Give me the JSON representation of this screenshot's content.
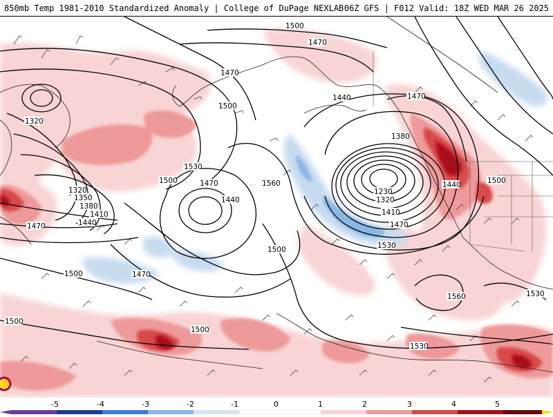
{
  "header": {
    "left_title": "850mb Temp 1981-2010 Standardized Anomaly | College of DuPage NEXLAB",
    "right_title": "06Z GFS | F012 Valid: 18Z WED MAR 26 2025"
  },
  "contour_labels": [
    {
      "id": "c1500a",
      "text": "1500"
    },
    {
      "id": "c1470a",
      "text": "1470"
    },
    {
      "id": "c1470b",
      "text": "1470"
    },
    {
      "id": "c1440a",
      "text": "1440"
    },
    {
      "id": "c1470c",
      "text": "1470"
    },
    {
      "id": "c1320a",
      "text": "1320"
    },
    {
      "id": "c1500b",
      "text": "1500"
    },
    {
      "id": "c1380a",
      "text": "1380"
    },
    {
      "id": "c1530a",
      "text": "1530"
    },
    {
      "id": "c1560a",
      "text": "1560"
    },
    {
      "id": "c1500c",
      "text": "1500"
    },
    {
      "id": "c1470d",
      "text": "1470"
    },
    {
      "id": "c1440b",
      "text": "1440"
    },
    {
      "id": "c1230",
      "text": "1230"
    },
    {
      "id": "c1320b",
      "text": "1320"
    },
    {
      "id": "c1410a",
      "text": "1410"
    },
    {
      "id": "c1470e",
      "text": "1470"
    },
    {
      "id": "c1440c",
      "text": "1440"
    },
    {
      "id": "c1500d",
      "text": "1500"
    },
    {
      "id": "c1320c",
      "text": "1320"
    },
    {
      "id": "c1350",
      "text": "1350"
    },
    {
      "id": "c1380b",
      "text": "1380"
    },
    {
      "id": "c1410b",
      "text": "1410"
    },
    {
      "id": "c1440d",
      "text": "1440"
    },
    {
      "id": "c1470f",
      "text": "1470"
    },
    {
      "id": "c1530b",
      "text": "1530"
    },
    {
      "id": "c1500e",
      "text": "1500"
    },
    {
      "id": "c1500f",
      "text": "1500"
    },
    {
      "id": "c1470g",
      "text": "1470"
    },
    {
      "id": "c1560b",
      "text": "1560"
    },
    {
      "id": "c1530c",
      "text": "1530"
    },
    {
      "id": "c1500g",
      "text": "1500"
    },
    {
      "id": "c1500h",
      "text": "1500"
    },
    {
      "id": "c1530d",
      "text": "1530"
    }
  ],
  "colorbar": {
    "ticks": [
      "-5",
      "-4",
      "-3",
      "-2",
      "-1",
      "0",
      "1",
      "2",
      "3",
      "4",
      "5"
    ],
    "colors": {
      "m5": "#6a3d9a",
      "m4": "#1f3a93",
      "m3": "#3a7bd5",
      "m2": "#8ab6e6",
      "m1": "#d6e4f2",
      "zero": "#ffffff",
      "p1": "#f8d4d4",
      "p2": "#ef9a9a",
      "p3": "#d84a4a",
      "p4": "#a90f1e",
      "p5": "#6b0010",
      "extreme": "#ffd700"
    }
  }
}
